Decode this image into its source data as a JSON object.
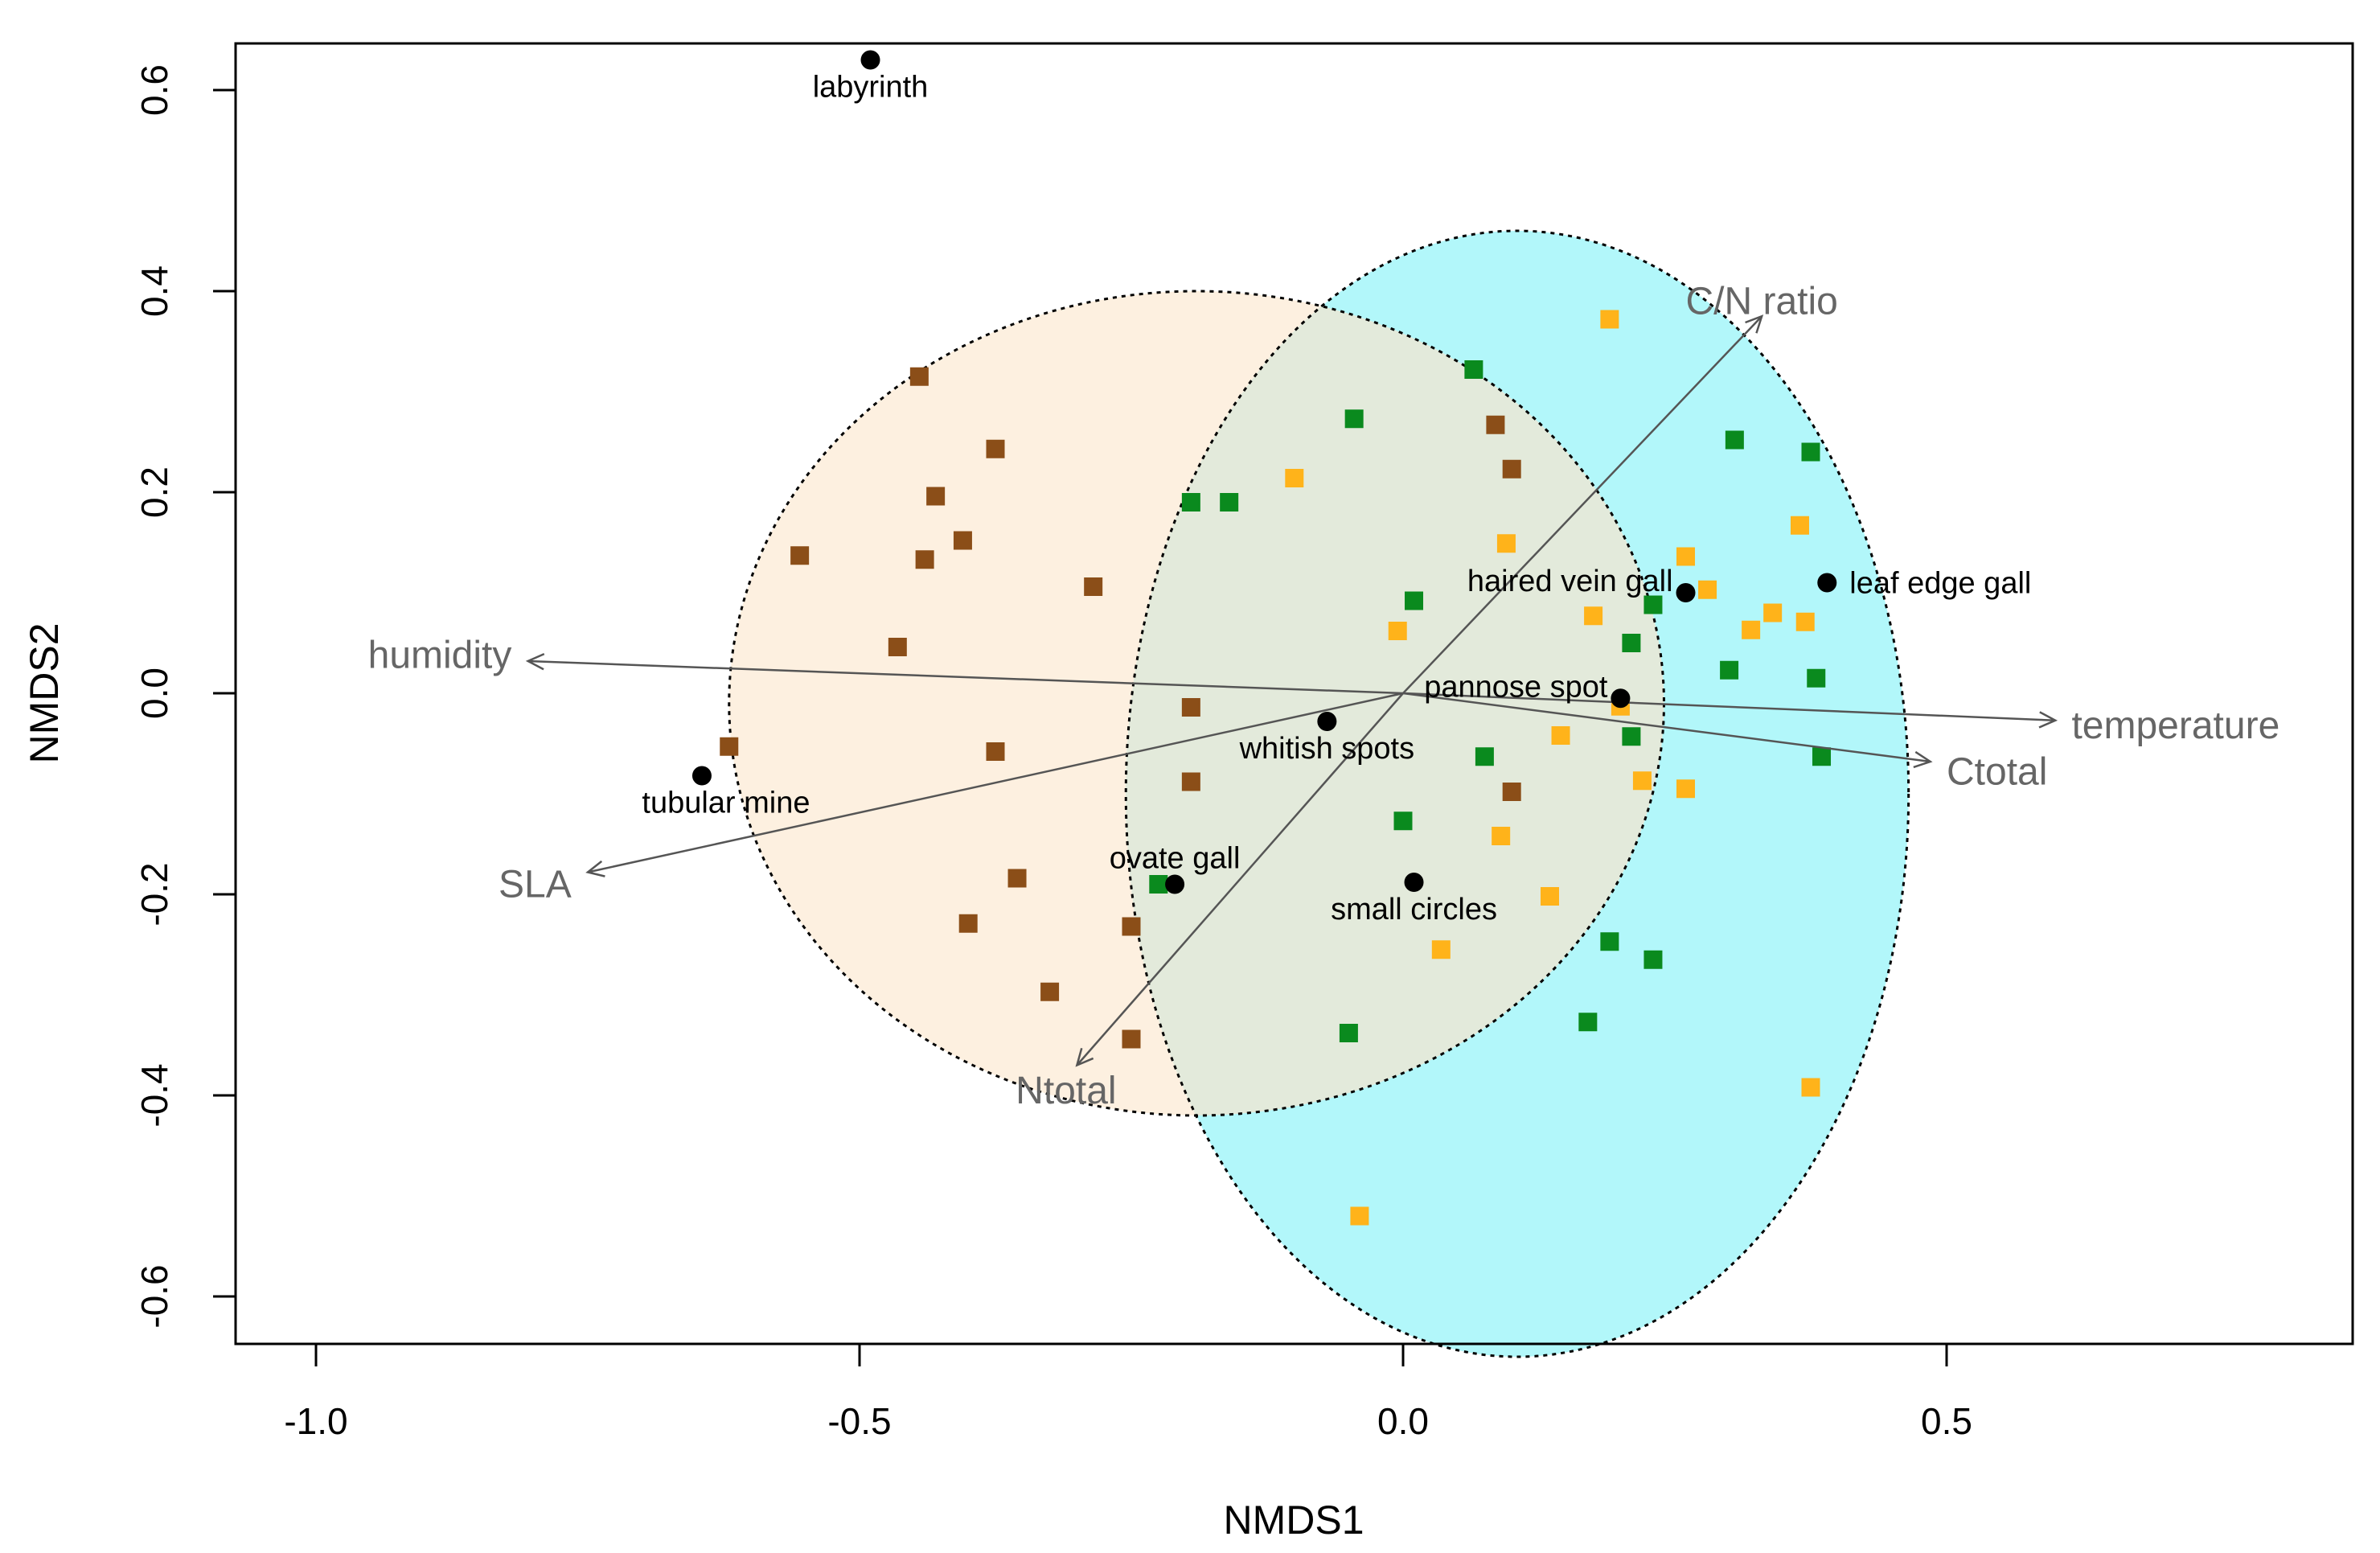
{
  "chart_data": {
    "type": "scatter",
    "title": "",
    "xlabel": "NMDS1",
    "ylabel": "NMDS2",
    "xlim": [
      -1.07,
      0.88
    ],
    "ylim": [
      -0.65,
      0.66
    ],
    "xticks": [
      -1.0,
      -0.5,
      0.0,
      0.5
    ],
    "xtick_labels": [
      "-1.0",
      "-0.5",
      "0.0",
      "0.5"
    ],
    "yticks": [
      -0.6,
      -0.4,
      -0.2,
      0.0,
      0.2,
      0.4,
      0.6
    ],
    "ytick_labels": [
      "-0.6",
      "-0.4",
      "-0.2",
      "0.0",
      "0.2",
      "0.4",
      "0.6"
    ],
    "ellipses": [
      {
        "name": "brown-group",
        "cx": -0.19,
        "cy": -0.01,
        "rx": 0.43,
        "ry": 0.41,
        "fill": "#fdf0e0"
      },
      {
        "name": "green-yellow-group",
        "cx": 0.105,
        "cy": -0.1,
        "rx": 0.36,
        "ry": 0.56,
        "fill": "#b2f7fa"
      }
    ],
    "series": [
      {
        "name": "brown",
        "color": "#8b4e18",
        "points": [
          [
            -0.445,
            0.315
          ],
          [
            -0.375,
            0.243
          ],
          [
            -0.43,
            0.196
          ],
          [
            -0.555,
            0.137
          ],
          [
            -0.44,
            0.133
          ],
          [
            -0.405,
            0.152
          ],
          [
            -0.285,
            0.106
          ],
          [
            -0.465,
            0.046
          ],
          [
            -0.62,
            -0.053
          ],
          [
            -0.375,
            -0.058
          ],
          [
            -0.195,
            -0.014
          ],
          [
            -0.195,
            -0.088
          ],
          [
            -0.355,
            -0.184
          ],
          [
            -0.4,
            -0.229
          ],
          [
            -0.25,
            -0.232
          ],
          [
            -0.325,
            -0.297
          ],
          [
            -0.25,
            -0.344
          ],
          [
            0.085,
            0.267
          ],
          [
            0.1,
            0.223
          ],
          [
            0.1,
            -0.098
          ]
        ]
      },
      {
        "name": "green",
        "color": "#0a8a1e",
        "points": [
          [
            0.065,
            0.322
          ],
          [
            -0.045,
            0.273
          ],
          [
            -0.195,
            0.19
          ],
          [
            -0.16,
            0.19
          ],
          [
            0.305,
            0.252
          ],
          [
            0.375,
            0.24
          ],
          [
            0.01,
            0.092
          ],
          [
            0.21,
            0.05
          ],
          [
            0.23,
            0.088
          ],
          [
            0.3,
            0.023
          ],
          [
            0.38,
            0.015
          ],
          [
            0.21,
            -0.043
          ],
          [
            0.075,
            -0.063
          ],
          [
            0.385,
            -0.063
          ],
          [
            0.0,
            -0.127
          ],
          [
            -0.225,
            -0.19
          ],
          [
            0.19,
            -0.247
          ],
          [
            0.23,
            -0.265
          ],
          [
            0.17,
            -0.327
          ],
          [
            -0.05,
            -0.338
          ]
        ]
      },
      {
        "name": "yellow",
        "color": "#ffb31a",
        "points": [
          [
            0.19,
            0.372
          ],
          [
            -0.1,
            0.214
          ],
          [
            0.365,
            0.167
          ],
          [
            0.095,
            0.149
          ],
          [
            0.26,
            0.136
          ],
          [
            0.28,
            0.103
          ],
          [
            0.34,
            0.08
          ],
          [
            0.175,
            0.077
          ],
          [
            0.32,
            0.063
          ],
          [
            0.37,
            0.071
          ],
          [
            -0.005,
            0.062
          ],
          [
            0.2,
            -0.013
          ],
          [
            0.145,
            -0.042
          ],
          [
            0.22,
            -0.087
          ],
          [
            0.26,
            -0.095
          ],
          [
            0.09,
            -0.142
          ],
          [
            0.135,
            -0.202
          ],
          [
            0.035,
            -0.255
          ],
          [
            0.375,
            -0.392
          ],
          [
            -0.04,
            -0.52
          ]
        ]
      }
    ],
    "sites": [
      {
        "label": "labyrinth",
        "x": -0.49,
        "y": 0.63,
        "anchor": "below"
      },
      {
        "label": "haired vein gall",
        "x": 0.26,
        "y": 0.1,
        "anchor": "left-above"
      },
      {
        "label": "leaf edge gall",
        "x": 0.39,
        "y": 0.11,
        "anchor": "right"
      },
      {
        "label": "pannose spot",
        "x": 0.2,
        "y": -0.005,
        "anchor": "left-above"
      },
      {
        "label": "whitish spots",
        "x": -0.07,
        "y": -0.028,
        "anchor": "below"
      },
      {
        "label": "tubular mine",
        "x": -0.645,
        "y": -0.082,
        "anchor": "below-right"
      },
      {
        "label": "ovate gall",
        "x": -0.21,
        "y": -0.19,
        "anchor": "above"
      },
      {
        "label": "small circles",
        "x": 0.01,
        "y": -0.188,
        "anchor": "below"
      }
    ],
    "vectors": [
      {
        "label": "C/N ratio",
        "x": 0.33,
        "y": 0.375,
        "label_x": 0.33,
        "label_y": 0.39
      },
      {
        "label": "humidity",
        "x": -0.805,
        "y": 0.032,
        "label_x": -0.82,
        "label_y": 0.038
      },
      {
        "label": "temperature",
        "x": 0.6,
        "y": -0.027,
        "label_x": 0.615,
        "label_y": -0.032
      },
      {
        "label": "Ctotal",
        "x": 0.485,
        "y": -0.068,
        "label_x": 0.5,
        "label_y": -0.078
      },
      {
        "label": "SLA",
        "x": -0.75,
        "y": -0.178,
        "label_x": -0.765,
        "label_y": -0.19
      },
      {
        "label": "Ntotal",
        "x": -0.3,
        "y": -0.37,
        "label_x": -0.31,
        "label_y": -0.395
      }
    ]
  }
}
